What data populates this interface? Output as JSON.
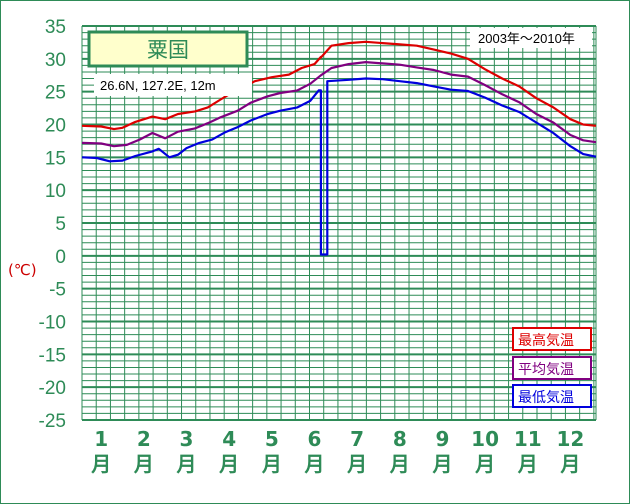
{
  "chart_data": {
    "type": "line",
    "title": "粟国",
    "location": "26.6N,  127.2E,  12m",
    "period": "2003年～2010年",
    "unit_label": "(℃)",
    "ylim": [
      -25,
      35
    ],
    "ytick_step": 5,
    "month_ticks": [
      "1",
      "2",
      "3",
      "4",
      "5",
      "6",
      "7",
      "8",
      "9",
      "10",
      "11",
      "12"
    ],
    "month_suffix": "月",
    "x_start_month": 0.55,
    "x_end_month": 12.6,
    "colors": {
      "max": "#dd0000",
      "avg": "#800080",
      "min": "#0000dd",
      "grid": "#2e8b57",
      "title_bg": "#ffffcc"
    },
    "series": [
      {
        "name": "最高気温",
        "key": "max",
        "points": [
          [
            0.55,
            19.8
          ],
          [
            1.0,
            19.7
          ],
          [
            1.3,
            19.3
          ],
          [
            1.5,
            19.5
          ],
          [
            1.8,
            20.4
          ],
          [
            2.2,
            21.2
          ],
          [
            2.5,
            20.8
          ],
          [
            2.8,
            21.6
          ],
          [
            3.2,
            22.0
          ],
          [
            3.5,
            22.6
          ],
          [
            3.8,
            23.8
          ],
          [
            4.0,
            24.6
          ],
          [
            4.3,
            25.6
          ],
          [
            4.6,
            26.6
          ],
          [
            5.0,
            27.2
          ],
          [
            5.4,
            27.6
          ],
          [
            5.7,
            28.6
          ],
          [
            6.0,
            29.2
          ],
          [
            6.15,
            30.3
          ],
          [
            6.15,
            30.2
          ],
          [
            6.4,
            32.0
          ],
          [
            6.8,
            32.4
          ],
          [
            7.2,
            32.6
          ],
          [
            7.6,
            32.4
          ],
          [
            8.0,
            32.2
          ],
          [
            8.4,
            32.0
          ],
          [
            8.8,
            31.4
          ],
          [
            9.2,
            30.8
          ],
          [
            9.6,
            30.0
          ],
          [
            10.0,
            28.4
          ],
          [
            10.4,
            27.0
          ],
          [
            10.8,
            25.8
          ],
          [
            11.2,
            24.0
          ],
          [
            11.6,
            22.6
          ],
          [
            12.0,
            20.8
          ],
          [
            12.3,
            20.0
          ],
          [
            12.6,
            19.8
          ]
        ]
      },
      {
        "name": "平均気温",
        "key": "avg",
        "points": [
          [
            0.55,
            17.2
          ],
          [
            1.0,
            17.1
          ],
          [
            1.3,
            16.7
          ],
          [
            1.6,
            16.9
          ],
          [
            1.9,
            17.7
          ],
          [
            2.2,
            18.7
          ],
          [
            2.5,
            17.9
          ],
          [
            2.8,
            18.9
          ],
          [
            3.2,
            19.4
          ],
          [
            3.5,
            20.2
          ],
          [
            3.8,
            21.1
          ],
          [
            4.2,
            22.1
          ],
          [
            4.5,
            23.3
          ],
          [
            4.9,
            24.3
          ],
          [
            5.2,
            24.8
          ],
          [
            5.6,
            25.2
          ],
          [
            5.9,
            26.2
          ],
          [
            6.15,
            27.5
          ],
          [
            6.4,
            28.6
          ],
          [
            6.8,
            29.2
          ],
          [
            7.2,
            29.5
          ],
          [
            7.6,
            29.3
          ],
          [
            8.0,
            29.1
          ],
          [
            8.4,
            28.7
          ],
          [
            8.8,
            28.3
          ],
          [
            9.2,
            27.6
          ],
          [
            9.6,
            27.3
          ],
          [
            10.0,
            26.0
          ],
          [
            10.4,
            24.6
          ],
          [
            10.8,
            23.4
          ],
          [
            11.2,
            21.6
          ],
          [
            11.6,
            20.3
          ],
          [
            12.0,
            18.4
          ],
          [
            12.3,
            17.6
          ],
          [
            12.6,
            17.3
          ]
        ]
      },
      {
        "name": "最低気温",
        "key": "min",
        "points": [
          [
            0.55,
            15.0
          ],
          [
            0.9,
            14.9
          ],
          [
            1.2,
            14.4
          ],
          [
            1.5,
            14.5
          ],
          [
            1.8,
            15.2
          ],
          [
            2.2,
            15.9
          ],
          [
            2.35,
            16.3
          ],
          [
            2.6,
            15.0
          ],
          [
            2.8,
            15.4
          ],
          [
            3.0,
            16.4
          ],
          [
            3.3,
            17.2
          ],
          [
            3.6,
            17.7
          ],
          [
            3.9,
            18.8
          ],
          [
            4.2,
            19.6
          ],
          [
            4.5,
            20.6
          ],
          [
            4.9,
            21.6
          ],
          [
            5.2,
            22.1
          ],
          [
            5.6,
            22.6
          ],
          [
            5.9,
            23.6
          ],
          [
            6.1,
            25.2
          ],
          [
            6.15,
            25.2
          ],
          [
            6.15,
            0.2
          ],
          [
            6.3,
            0.2
          ],
          [
            6.3,
            26.6
          ],
          [
            6.8,
            26.8
          ],
          [
            7.2,
            27.0
          ],
          [
            7.6,
            26.9
          ],
          [
            8.0,
            26.6
          ],
          [
            8.4,
            26.3
          ],
          [
            8.8,
            25.8
          ],
          [
            9.2,
            25.3
          ],
          [
            9.6,
            25.1
          ],
          [
            10.0,
            24.1
          ],
          [
            10.4,
            22.9
          ],
          [
            10.8,
            21.9
          ],
          [
            11.2,
            20.3
          ],
          [
            11.6,
            18.7
          ],
          [
            12.0,
            16.7
          ],
          [
            12.3,
            15.5
          ],
          [
            12.6,
            15.1
          ]
        ]
      }
    ]
  }
}
